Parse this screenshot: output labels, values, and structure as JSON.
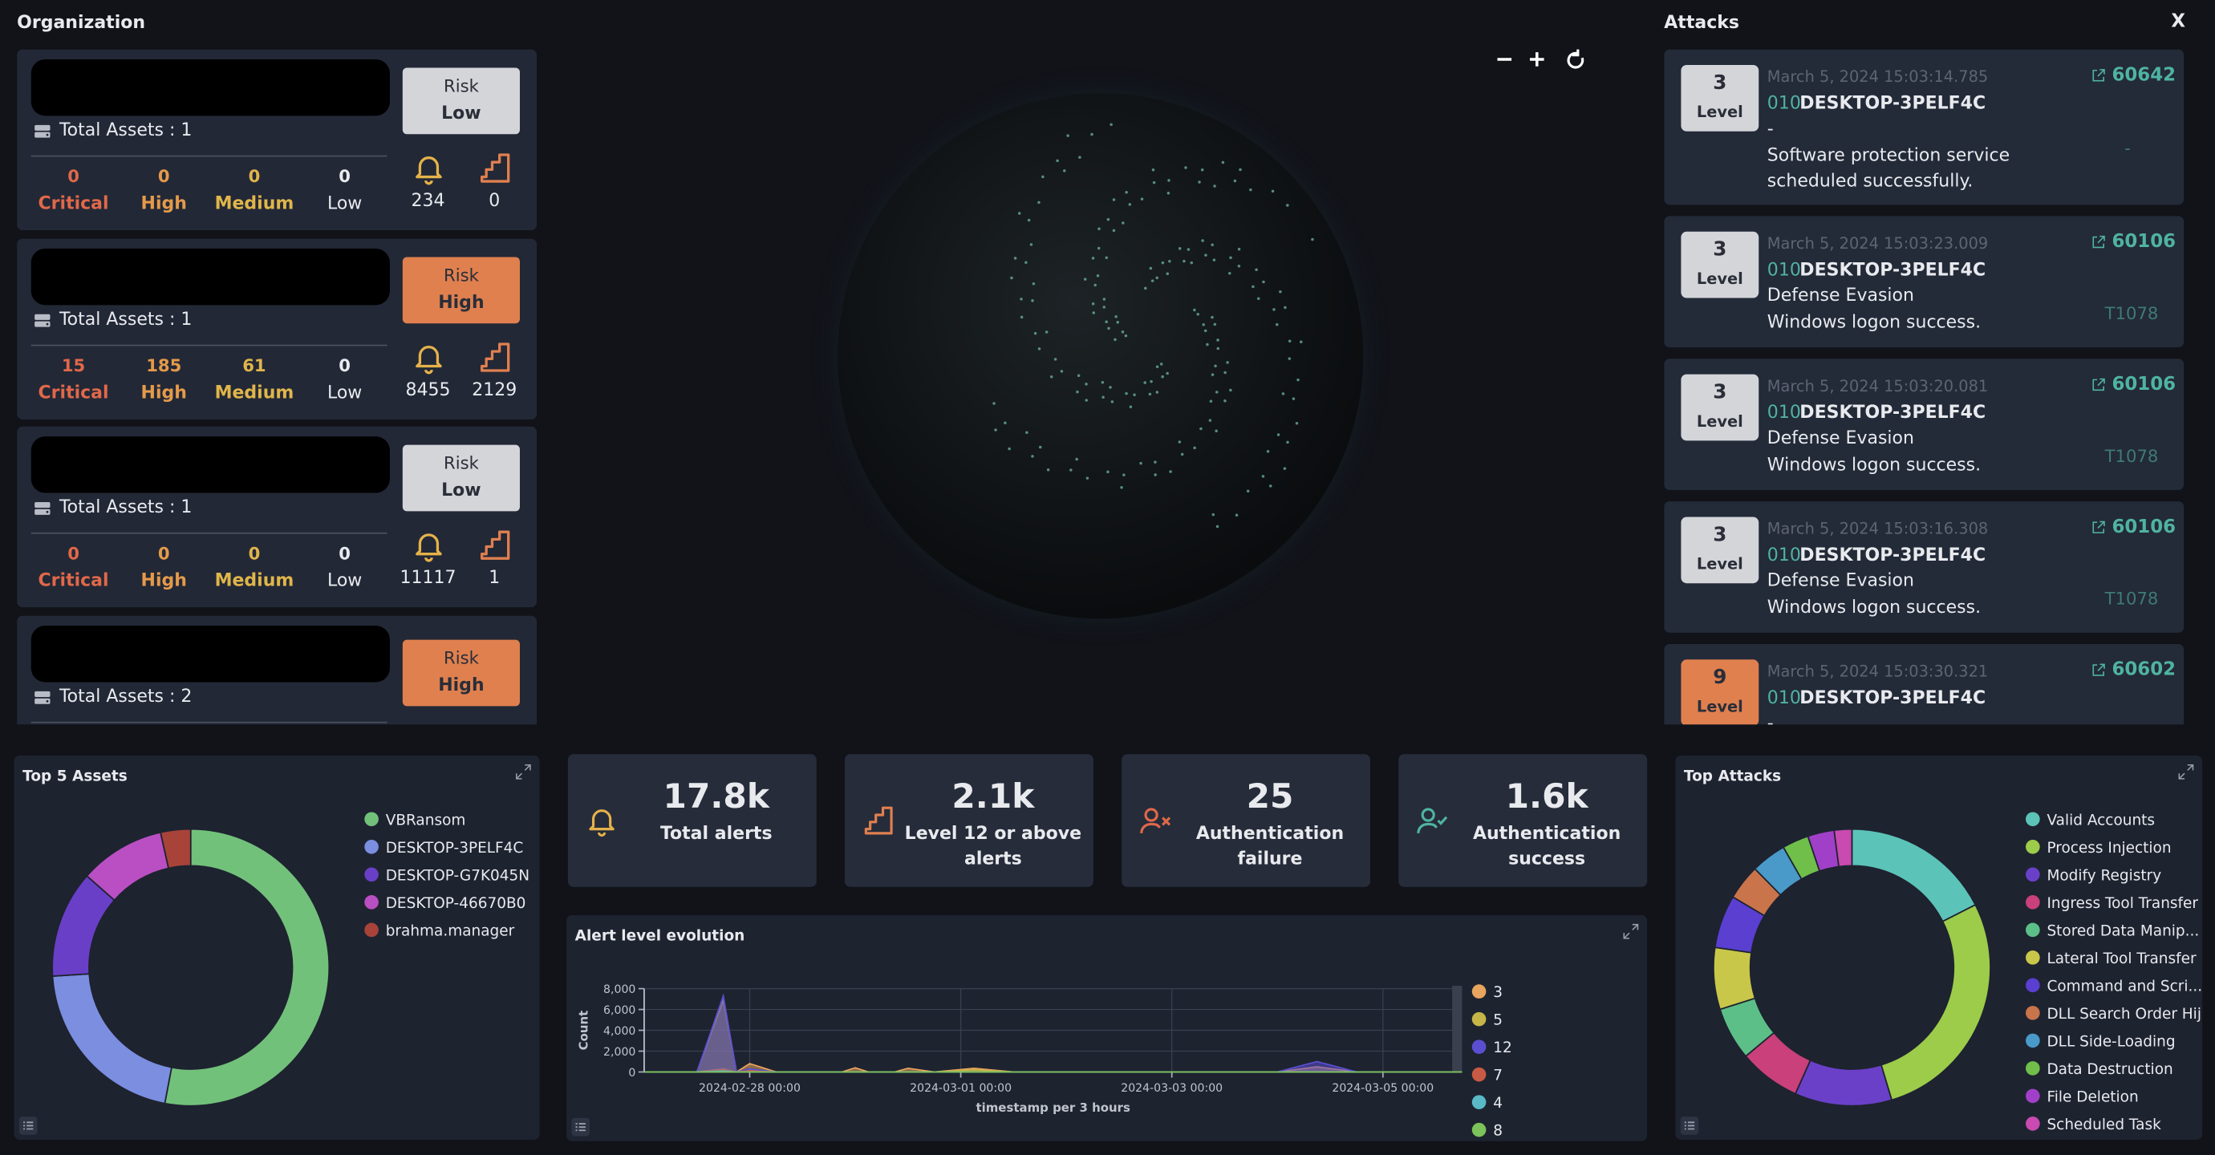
{
  "header": {
    "organization": "Organization",
    "attacks": "Attacks",
    "close": "X"
  },
  "organizations": [
    {
      "risk_label": "Risk",
      "risk": "Low",
      "total_assets": "Total Assets : 1",
      "counts": [
        {
          "value": 0,
          "label": "Critical"
        },
        {
          "value": 0,
          "label": "High"
        },
        {
          "value": 0,
          "label": "Medium"
        },
        {
          "value": 0,
          "label": "Low"
        }
      ],
      "alerts": 234,
      "level12": 0
    },
    {
      "risk_label": "Risk",
      "risk": "High",
      "total_assets": "Total Assets : 1",
      "counts": [
        {
          "value": 15,
          "label": "Critical"
        },
        {
          "value": 185,
          "label": "High"
        },
        {
          "value": 61,
          "label": "Medium"
        },
        {
          "value": 0,
          "label": "Low"
        }
      ],
      "alerts": 8455,
      "level12": 2129
    },
    {
      "risk_label": "Risk",
      "risk": "Low",
      "total_assets": "Total Assets : 1",
      "counts": [
        {
          "value": 0,
          "label": "Critical"
        },
        {
          "value": 0,
          "label": "High"
        },
        {
          "value": 0,
          "label": "Medium"
        },
        {
          "value": 0,
          "label": "Low"
        }
      ],
      "alerts": 11117,
      "level12": 1
    },
    {
      "risk_label": "Risk",
      "risk": "High",
      "total_assets": "Total Assets : 2"
    }
  ],
  "attacks": [
    {
      "level": 3,
      "level_label": "Level",
      "timestamp": "March 5, 2024 15:03:14.785",
      "agent_id": "010",
      "agent": "DESKTOP-3PELF4C",
      "tactic": "-",
      "description": "Software protection service scheduled successfully.",
      "rule_id": "60642",
      "technique": "-"
    },
    {
      "level": 3,
      "level_label": "Level",
      "timestamp": "March 5, 2024 15:03:23.009",
      "agent_id": "010",
      "agent": "DESKTOP-3PELF4C",
      "tactic": "Defense Evasion",
      "description": "Windows logon success.",
      "rule_id": "60106",
      "technique": "T1078"
    },
    {
      "level": 3,
      "level_label": "Level",
      "timestamp": "March 5, 2024 15:03:20.081",
      "agent_id": "010",
      "agent": "DESKTOP-3PELF4C",
      "tactic": "Defense Evasion",
      "description": "Windows logon success.",
      "rule_id": "60106",
      "technique": "T1078"
    },
    {
      "level": 3,
      "level_label": "Level",
      "timestamp": "March 5, 2024 15:03:16.308",
      "agent_id": "010",
      "agent": "DESKTOP-3PELF4C",
      "tactic": "Defense Evasion",
      "description": "Windows logon success.",
      "rule_id": "60106",
      "technique": "T1078"
    },
    {
      "level": 9,
      "level_label": "Level",
      "timestamp": "March 5, 2024 15:03:30.321",
      "agent_id": "010",
      "agent": "DESKTOP-3PELF4C",
      "tactic": "-",
      "rule_id": "60602"
    }
  ],
  "stats": [
    {
      "value": "17.8k",
      "label": "Total alerts"
    },
    {
      "value": "2.1k",
      "label": "Level 12 or above alerts"
    },
    {
      "value": 25,
      "label": "Authentication failure"
    },
    {
      "value": "1.6k",
      "label": "Authentication success"
    }
  ],
  "chart_data": [
    {
      "type": "pie",
      "title": "Top 5 Assets",
      "categories": [
        "VBRansom",
        "DESKTOP-3PELF4C",
        "DESKTOP-G7K045N",
        "DESKTOP-46670B0",
        "brahma.manager"
      ],
      "values": [
        53,
        21,
        12.5,
        10,
        3.5
      ],
      "colors": [
        "#72c17b",
        "#7b8ee0",
        "#6a3fc7",
        "#b94fc2",
        "#a8433a"
      ]
    },
    {
      "type": "area",
      "title": "Alert level evolution",
      "x_label": "timestamp per 3 hours",
      "y_label": "Count",
      "x": [
        "2024-02-27 00:00",
        "2024-02-27 12:00",
        "2024-02-27 18:00",
        "2024-02-27 21:00",
        "2024-02-28 00:00",
        "2024-02-28 06:00",
        "2024-02-28 21:00",
        "2024-02-29 00:00",
        "2024-02-29 03:00",
        "2024-02-29 09:00",
        "2024-02-29 12:00",
        "2024-02-29 18:00",
        "2024-03-01 03:00",
        "2024-03-01 12:00",
        "2024-03-04 00:00",
        "2024-03-04 09:00",
        "2024-03-04 18:00",
        "2024-03-05 18:00"
      ],
      "xlim": [
        "2024-02-27 00:00",
        "2024-03-05 18:00"
      ],
      "xticks": [
        "2024-02-28 00:00",
        "2024-03-01 00:00",
        "2024-03-03 00:00",
        "2024-03-05 00:00"
      ],
      "ylim": [
        0,
        8000
      ],
      "yticks": [
        0,
        {
          "value": 2000,
          "label": "2,000"
        },
        {
          "value": 4000,
          "label": "4,000"
        },
        {
          "value": 6000,
          "label": "6,000"
        },
        {
          "value": 8000,
          "label": "8,000"
        }
      ],
      "grid": true,
      "series": [
        {
          "name": "3",
          "color": "#e8a55d",
          "values": [
            0,
            0,
            300,
            0,
            800,
            0,
            0,
            400,
            0,
            0,
            350,
            0,
            350,
            0,
            0,
            500,
            0,
            0
          ]
        },
        {
          "name": "5",
          "color": "#c6b648",
          "values": [
            0,
            0,
            6900,
            0,
            200,
            0,
            0,
            0,
            0,
            0,
            0,
            0,
            200,
            0,
            0,
            0,
            0,
            0
          ]
        },
        {
          "name": "12",
          "color": "#5a4fd0",
          "values": [
            0,
            0,
            7300,
            0,
            300,
            0,
            0,
            0,
            0,
            0,
            0,
            0,
            0,
            0,
            0,
            1000,
            0,
            0
          ]
        },
        {
          "name": "7",
          "color": "#c95a43",
          "values": [
            0,
            0,
            200,
            0,
            100,
            0,
            0,
            0,
            0,
            0,
            0,
            0,
            0,
            0,
            0,
            0,
            0,
            0
          ]
        },
        {
          "name": "4",
          "color": "#5ab9c6",
          "values": [
            0,
            0,
            100,
            0,
            0,
            0,
            0,
            0,
            0,
            0,
            0,
            0,
            0,
            0,
            0,
            0,
            0,
            0
          ]
        },
        {
          "name": "8",
          "color": "#7cc35a",
          "values": [
            0,
            0,
            0,
            0,
            0,
            0,
            0,
            0,
            0,
            0,
            0,
            0,
            0,
            0,
            0,
            0,
            0,
            0
          ]
        }
      ]
    },
    {
      "type": "pie",
      "title": "Top Attacks",
      "categories": [
        "Valid Accounts",
        "Process Injection",
        "Modify Registry",
        "Ingress Tool Transfer",
        "Stored Data Manip...",
        "Lateral Tool Transfer",
        "Command and Scri...",
        "DLL Search Order Hij...",
        "DLL Side-Loading",
        "Data Destruction",
        "File Deletion",
        "Scheduled Task"
      ],
      "values": [
        17,
        27,
        11,
        7,
        6,
        7,
        6,
        4,
        4,
        3,
        3,
        2
      ],
      "colors": [
        "#5cc3b8",
        "#9ccc4a",
        "#6a40c9",
        "#c9407a",
        "#5cbf87",
        "#c9c74a",
        "#5a3fd1",
        "#c9744a",
        "#4a9ac9",
        "#6fbf4a",
        "#a040c9",
        "#c94ab0"
      ]
    }
  ]
}
